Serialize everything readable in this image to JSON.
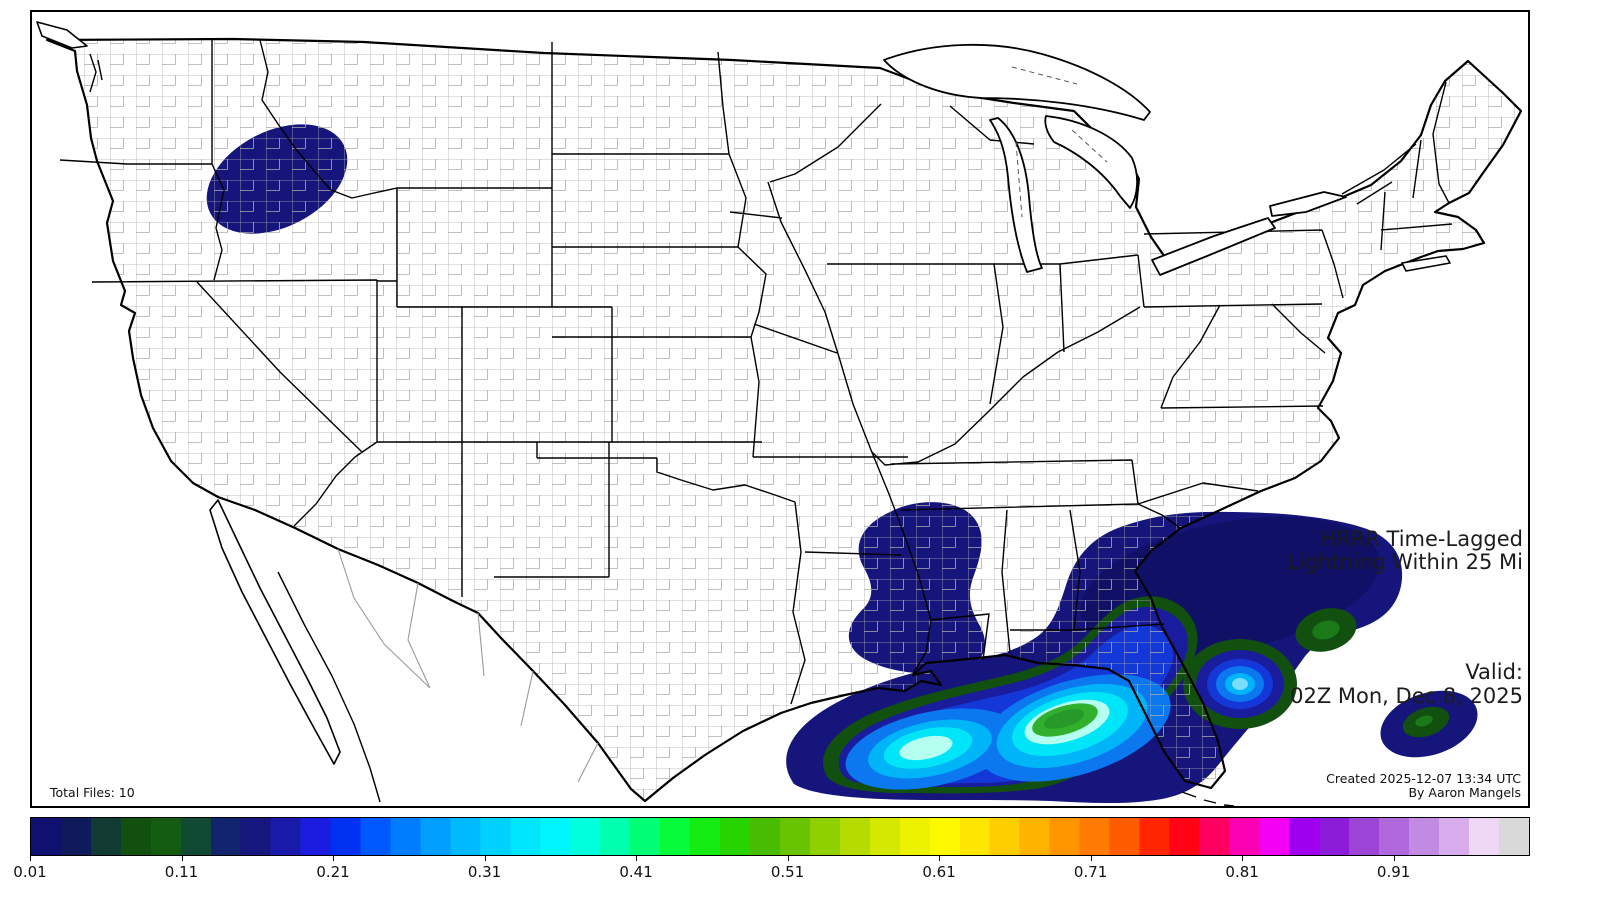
{
  "header": {
    "title_line1": "HRRR Time-Lagged",
    "title_line2": "Lightning Within 25 Mi"
  },
  "valid": {
    "label": "Valid:",
    "value": "02Z Mon, Dec 8, 2025"
  },
  "footer": {
    "created": "Created 2025-12-07 13:34 UTC",
    "author": "By Aaron Mangels",
    "total_files": "Total Files: 10"
  },
  "colorbar": {
    "range_min": 0.01,
    "range_max": 1.0,
    "tick_labels": [
      "0.01",
      "0.11",
      "0.21",
      "0.31",
      "0.41",
      "0.51",
      "0.61",
      "0.71",
      "0.81",
      "0.91"
    ],
    "segment_colors": [
      "#101070",
      "#0f1a5c",
      "#113a33",
      "#125010",
      "#145c12",
      "#104a32",
      "#12246e",
      "#16167e",
      "#1919aa",
      "#1c1ce0",
      "#0030f0",
      "#0058ff",
      "#007cff",
      "#009eff",
      "#00baff",
      "#00d2ff",
      "#00e6ff",
      "#00f6ff",
      "#00ffdc",
      "#00ffae",
      "#00ff74",
      "#06fa3a",
      "#14ec14",
      "#28d400",
      "#48bc00",
      "#68c400",
      "#8ed000",
      "#b4dc00",
      "#d4e800",
      "#ecf200",
      "#fcf800",
      "#ffe600",
      "#ffce00",
      "#ffb200",
      "#ff9600",
      "#ff7a00",
      "#ff5c00",
      "#ff2600",
      "#ff0414",
      "#ff0060",
      "#fc00b4",
      "#f400f4",
      "#a000f0",
      "#8c1cd8",
      "#9c44d6",
      "#b068dc",
      "#c28ae2",
      "#d6acec",
      "#eed8f6",
      "#d9d9d9"
    ]
  },
  "map": {
    "region": "CONUS",
    "land_color": "#ffffff",
    "water_color": "#ffffff",
    "county_line_color": "#adadad",
    "state_line_color": "#000000",
    "contour_colors": {
      "lv1": "#15157b",
      "lv1b": "#101066",
      "lv2": "#12500f",
      "lv2b": "#1a7a17",
      "lv3": "#1a1c9e",
      "lv4": "#1438d8",
      "lv5": "#0b78f0",
      "lv6": "#00b4f8",
      "lv7": "#00e6f8",
      "lv7b": "#7adcff",
      "lv8": "#b4fff0",
      "lv9": "#30b02c",
      "lv9b": "#27992a"
    },
    "lightning_regions": [
      {
        "name": "idaho-montana-cell",
        "peak_value": 0.05
      },
      {
        "name": "lower-mississippi-valley",
        "peak_value": 0.05
      },
      {
        "name": "gulf-florida-southeast-atlantic",
        "peak_value": 0.43
      },
      {
        "name": "western-atlantic-small-cell",
        "peak_value": 0.09
      }
    ]
  }
}
